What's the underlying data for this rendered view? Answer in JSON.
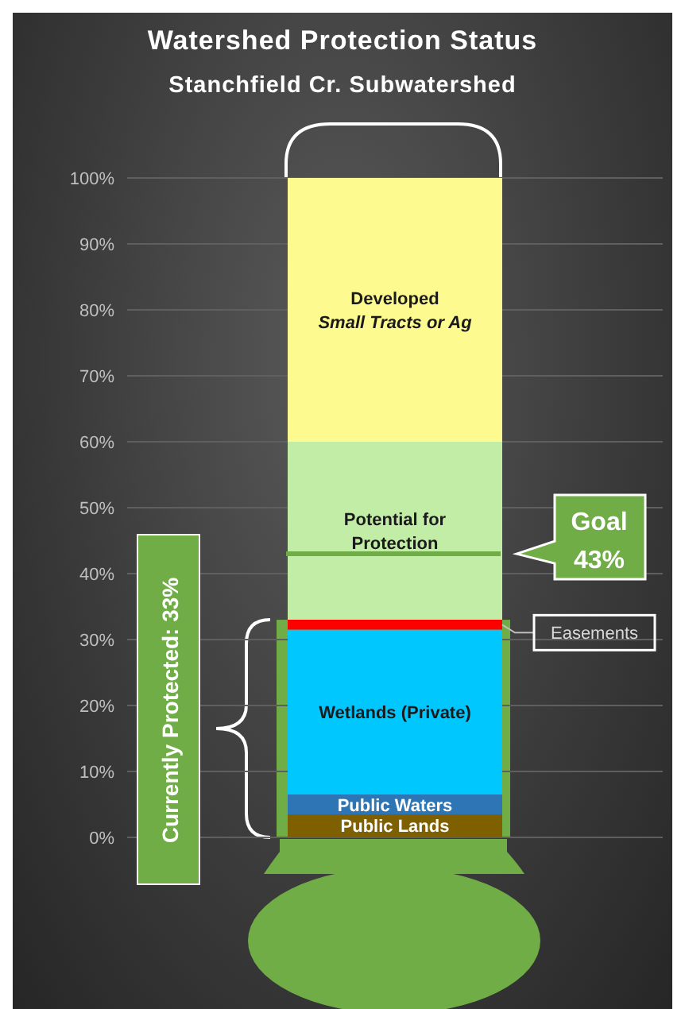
{
  "chart_data": {
    "type": "bar",
    "title": "Watershed Protection Status",
    "subtitle": "Stanchfield Cr. Subwatershed",
    "categories": [
      null
    ],
    "stacked": true,
    "series": [
      {
        "name": "Public Lands",
        "color": "#7f6000",
        "values": [
          3.5
        ]
      },
      {
        "name": "Public Waters",
        "color": "#2e75b6",
        "values": [
          3
        ]
      },
      {
        "name": "Wetlands (Private)",
        "color": "#00c8ff",
        "values": [
          25
        ]
      },
      {
        "name": "Easements",
        "color": "#ff0000",
        "values": [
          1.5
        ]
      },
      {
        "name": "Potential for Protection",
        "color": "#c2eda6",
        "values": [
          27
        ]
      },
      {
        "name": "Developed",
        "color": "#fdfb8f",
        "values": [
          40
        ]
      }
    ],
    "ylim": [
      0,
      100
    ],
    "yticks": [
      {
        "value": 0,
        "label": "0%"
      },
      {
        "value": 10,
        "label": "10%"
      },
      {
        "value": 20,
        "label": "20%"
      },
      {
        "value": 30,
        "label": "30%"
      },
      {
        "value": 40,
        "label": "40%"
      },
      {
        "value": 50,
        "label": "50%"
      },
      {
        "value": 60,
        "label": "60%"
      },
      {
        "value": 70,
        "label": "70%"
      },
      {
        "value": 80,
        "label": "80%"
      },
      {
        "value": 90,
        "label": "90%"
      },
      {
        "value": 100,
        "label": "100%"
      }
    ],
    "grid": "y",
    "legend": false,
    "ref_lines": [
      {
        "axis": "y",
        "value": 43,
        "label": "Goal 43%",
        "color": "#70ad47"
      }
    ],
    "bands": [
      {
        "axis": "y",
        "from": 0,
        "to": 33,
        "color": "#70ad47"
      }
    ],
    "annotations": [
      "Currently Protected: 33%",
      "Small Tracts or Ag"
    ]
  }
}
